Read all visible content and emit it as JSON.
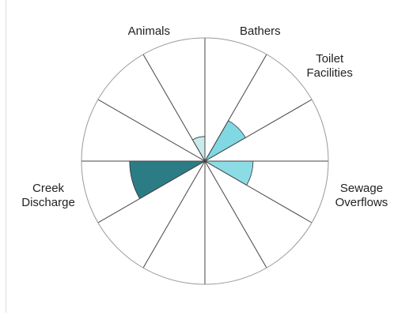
{
  "chart_data": {
    "type": "polar-area",
    "categories": [
      "Bathers",
      "Toilet Facilities",
      null,
      "Sewage Overflows",
      null,
      null,
      null,
      null,
      "Creek Discharge",
      null,
      null,
      "Animals"
    ],
    "values": [
      0,
      38,
      0,
      39,
      0,
      0,
      0,
      0,
      61,
      0,
      0,
      20
    ],
    "colors": [
      null,
      "#7fd8e2",
      null,
      "#8cdce5",
      null,
      null,
      null,
      null,
      "#2c7c86",
      null,
      null,
      "#c9ebea"
    ],
    "rlim": [
      0,
      100
    ]
  }
}
